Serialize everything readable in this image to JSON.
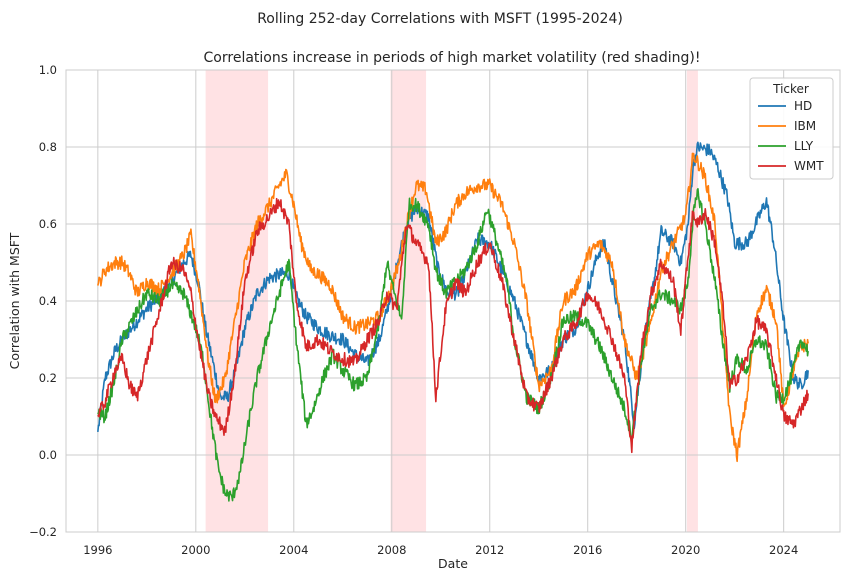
{
  "chart_data": {
    "type": "line",
    "suptitle": "Rolling 252-day Correlations with MSFT (1995-2024)",
    "title": "Correlations increase in periods of high market volatility (red shading)!",
    "xlabel": "Date",
    "ylabel": "Correlation with MSFT",
    "xlim": [
      1994.7,
      2026.3
    ],
    "ylim": [
      -0.2,
      1.0
    ],
    "xticks": [
      1996,
      2000,
      2004,
      2008,
      2012,
      2016,
      2020,
      2024
    ],
    "xtick_labels": [
      "1996",
      "2000",
      "2004",
      "2008",
      "2012",
      "2016",
      "2020",
      "2024"
    ],
    "yticks": [
      -0.2,
      0.0,
      0.2,
      0.4,
      0.6,
      0.8,
      1.0
    ],
    "ytick_labels": [
      "−0.2",
      "0.0",
      "0.2",
      "0.4",
      "0.6",
      "0.8",
      "1.0"
    ],
    "grid": true,
    "shaded_periods": [
      [
        2000.4,
        2002.95
      ],
      [
        2007.95,
        2009.4
      ],
      [
        2020.05,
        2020.5
      ]
    ],
    "shade_color": "#ffb3b8",
    "legend": {
      "title": "Ticker",
      "position": "top-right"
    },
    "series": [
      {
        "name": "HD",
        "color": "#1f77b4",
        "points": [
          [
            1996.0,
            0.06
          ],
          [
            1996.3,
            0.2
          ],
          [
            1996.7,
            0.27
          ],
          [
            1997.0,
            0.3
          ],
          [
            1997.5,
            0.34
          ],
          [
            1998.0,
            0.38
          ],
          [
            1998.5,
            0.41
          ],
          [
            1999.0,
            0.45
          ],
          [
            1999.5,
            0.5
          ],
          [
            1999.8,
            0.52
          ],
          [
            2000.1,
            0.45
          ],
          [
            2000.4,
            0.33
          ],
          [
            2000.7,
            0.24
          ],
          [
            2001.0,
            0.15
          ],
          [
            2001.3,
            0.15
          ],
          [
            2001.7,
            0.24
          ],
          [
            2002.0,
            0.33
          ],
          [
            2002.5,
            0.42
          ],
          [
            2003.0,
            0.46
          ],
          [
            2003.5,
            0.47
          ],
          [
            2003.8,
            0.47
          ],
          [
            2004.1,
            0.41
          ],
          [
            2004.5,
            0.36
          ],
          [
            2005.0,
            0.33
          ],
          [
            2005.5,
            0.31
          ],
          [
            2006.0,
            0.3
          ],
          [
            2006.5,
            0.26
          ],
          [
            2007.0,
            0.24
          ],
          [
            2007.5,
            0.3
          ],
          [
            2007.9,
            0.4
          ],
          [
            2008.3,
            0.52
          ],
          [
            2008.6,
            0.6
          ],
          [
            2009.0,
            0.64
          ],
          [
            2009.5,
            0.62
          ],
          [
            2009.9,
            0.48
          ],
          [
            2010.3,
            0.42
          ],
          [
            2010.7,
            0.42
          ],
          [
            2011.0,
            0.47
          ],
          [
            2011.5,
            0.56
          ],
          [
            2012.0,
            0.55
          ],
          [
            2012.5,
            0.48
          ],
          [
            2013.0,
            0.4
          ],
          [
            2013.5,
            0.3
          ],
          [
            2014.0,
            0.2
          ],
          [
            2014.5,
            0.22
          ],
          [
            2015.0,
            0.3
          ],
          [
            2015.5,
            0.33
          ],
          [
            2016.0,
            0.43
          ],
          [
            2016.4,
            0.52
          ],
          [
            2016.7,
            0.55
          ],
          [
            2017.0,
            0.45
          ],
          [
            2017.5,
            0.3
          ],
          [
            2017.9,
            0.08
          ],
          [
            2018.3,
            0.3
          ],
          [
            2018.7,
            0.45
          ],
          [
            2019.0,
            0.58
          ],
          [
            2019.5,
            0.55
          ],
          [
            2019.8,
            0.5
          ],
          [
            2020.1,
            0.6
          ],
          [
            2020.3,
            0.75
          ],
          [
            2020.5,
            0.8
          ],
          [
            2021.0,
            0.79
          ],
          [
            2021.3,
            0.75
          ],
          [
            2021.7,
            0.67
          ],
          [
            2022.0,
            0.55
          ],
          [
            2022.5,
            0.55
          ],
          [
            2023.0,
            0.62
          ],
          [
            2023.3,
            0.66
          ],
          [
            2023.6,
            0.55
          ],
          [
            2024.0,
            0.35
          ],
          [
            2024.4,
            0.2
          ],
          [
            2024.7,
            0.18
          ],
          [
            2025.0,
            0.22
          ]
        ]
      },
      {
        "name": "IBM",
        "color": "#ff7f0e",
        "points": [
          [
            1996.0,
            0.44
          ],
          [
            1996.3,
            0.48
          ],
          [
            1996.7,
            0.5
          ],
          [
            1997.0,
            0.5
          ],
          [
            1997.3,
            0.47
          ],
          [
            1997.6,
            0.42
          ],
          [
            1998.0,
            0.45
          ],
          [
            1998.5,
            0.43
          ],
          [
            1999.0,
            0.47
          ],
          [
            1999.5,
            0.52
          ],
          [
            1999.8,
            0.57
          ],
          [
            2000.1,
            0.45
          ],
          [
            2000.5,
            0.25
          ],
          [
            2000.8,
            0.14
          ],
          [
            2001.2,
            0.2
          ],
          [
            2001.6,
            0.35
          ],
          [
            2002.0,
            0.5
          ],
          [
            2002.5,
            0.6
          ],
          [
            2003.0,
            0.65
          ],
          [
            2003.4,
            0.7
          ],
          [
            2003.7,
            0.73
          ],
          [
            2004.0,
            0.65
          ],
          [
            2004.3,
            0.55
          ],
          [
            2004.7,
            0.48
          ],
          [
            2005.0,
            0.47
          ],
          [
            2005.5,
            0.44
          ],
          [
            2006.0,
            0.36
          ],
          [
            2006.5,
            0.33
          ],
          [
            2007.0,
            0.34
          ],
          [
            2007.5,
            0.36
          ],
          [
            2007.9,
            0.42
          ],
          [
            2008.3,
            0.5
          ],
          [
            2008.6,
            0.6
          ],
          [
            2009.0,
            0.7
          ],
          [
            2009.4,
            0.69
          ],
          [
            2009.8,
            0.55
          ],
          [
            2010.2,
            0.58
          ],
          [
            2010.6,
            0.65
          ],
          [
            2011.0,
            0.68
          ],
          [
            2011.5,
            0.7
          ],
          [
            2012.0,
            0.7
          ],
          [
            2012.5,
            0.65
          ],
          [
            2013.0,
            0.55
          ],
          [
            2013.5,
            0.4
          ],
          [
            2014.0,
            0.18
          ],
          [
            2014.5,
            0.22
          ],
          [
            2015.0,
            0.4
          ],
          [
            2015.5,
            0.43
          ],
          [
            2016.0,
            0.52
          ],
          [
            2016.5,
            0.55
          ],
          [
            2017.0,
            0.5
          ],
          [
            2017.5,
            0.3
          ],
          [
            2018.0,
            0.2
          ],
          [
            2018.5,
            0.32
          ],
          [
            2019.0,
            0.48
          ],
          [
            2019.5,
            0.55
          ],
          [
            2020.0,
            0.62
          ],
          [
            2020.3,
            0.78
          ],
          [
            2020.5,
            0.76
          ],
          [
            2020.8,
            0.72
          ],
          [
            2021.2,
            0.6
          ],
          [
            2021.5,
            0.35
          ],
          [
            2021.8,
            0.1
          ],
          [
            2022.1,
            0.0
          ],
          [
            2022.5,
            0.15
          ],
          [
            2022.9,
            0.37
          ],
          [
            2023.3,
            0.43
          ],
          [
            2023.7,
            0.35
          ],
          [
            2024.0,
            0.12
          ],
          [
            2024.4,
            0.22
          ],
          [
            2024.7,
            0.28
          ],
          [
            2025.0,
            0.29
          ]
        ]
      },
      {
        "name": "LLY",
        "color": "#2ca02c",
        "points": [
          [
            1996.0,
            0.11
          ],
          [
            1996.3,
            0.1
          ],
          [
            1996.7,
            0.2
          ],
          [
            1997.0,
            0.3
          ],
          [
            1997.5,
            0.36
          ],
          [
            1998.0,
            0.42
          ],
          [
            1998.5,
            0.4
          ],
          [
            1999.0,
            0.44
          ],
          [
            1999.5,
            0.42
          ],
          [
            2000.0,
            0.33
          ],
          [
            2000.3,
            0.25
          ],
          [
            2000.6,
            0.1
          ],
          [
            2000.9,
            -0.03
          ],
          [
            2001.2,
            -0.1
          ],
          [
            2001.5,
            -0.11
          ],
          [
            2001.8,
            -0.05
          ],
          [
            2002.2,
            0.1
          ],
          [
            2002.5,
            0.2
          ],
          [
            2003.0,
            0.33
          ],
          [
            2003.5,
            0.44
          ],
          [
            2003.8,
            0.5
          ],
          [
            2004.1,
            0.3
          ],
          [
            2004.5,
            0.08
          ],
          [
            2004.8,
            0.12
          ],
          [
            2005.2,
            0.2
          ],
          [
            2005.6,
            0.26
          ],
          [
            2006.0,
            0.22
          ],
          [
            2006.5,
            0.18
          ],
          [
            2007.0,
            0.2
          ],
          [
            2007.5,
            0.35
          ],
          [
            2007.8,
            0.5
          ],
          [
            2008.1,
            0.42
          ],
          [
            2008.4,
            0.35
          ],
          [
            2008.7,
            0.65
          ],
          [
            2009.0,
            0.65
          ],
          [
            2009.5,
            0.6
          ],
          [
            2009.8,
            0.48
          ],
          [
            2010.2,
            0.42
          ],
          [
            2010.6,
            0.45
          ],
          [
            2011.0,
            0.48
          ],
          [
            2011.5,
            0.55
          ],
          [
            2011.9,
            0.64
          ],
          [
            2012.3,
            0.55
          ],
          [
            2012.7,
            0.45
          ],
          [
            2013.0,
            0.3
          ],
          [
            2013.5,
            0.15
          ],
          [
            2014.0,
            0.12
          ],
          [
            2014.5,
            0.2
          ],
          [
            2015.0,
            0.35
          ],
          [
            2015.5,
            0.36
          ],
          [
            2016.0,
            0.34
          ],
          [
            2016.5,
            0.28
          ],
          [
            2017.0,
            0.2
          ],
          [
            2017.5,
            0.12
          ],
          [
            2017.8,
            0.05
          ],
          [
            2018.2,
            0.25
          ],
          [
            2018.6,
            0.38
          ],
          [
            2019.0,
            0.42
          ],
          [
            2019.5,
            0.4
          ],
          [
            2019.8,
            0.38
          ],
          [
            2020.1,
            0.45
          ],
          [
            2020.3,
            0.62
          ],
          [
            2020.5,
            0.68
          ],
          [
            2020.8,
            0.6
          ],
          [
            2021.2,
            0.45
          ],
          [
            2021.5,
            0.3
          ],
          [
            2021.8,
            0.18
          ],
          [
            2022.1,
            0.25
          ],
          [
            2022.5,
            0.22
          ],
          [
            2022.9,
            0.3
          ],
          [
            2023.3,
            0.28
          ],
          [
            2023.7,
            0.15
          ],
          [
            2024.0,
            0.15
          ],
          [
            2024.3,
            0.2
          ],
          [
            2024.7,
            0.3
          ],
          [
            2025.0,
            0.27
          ]
        ]
      },
      {
        "name": "WMT",
        "color": "#d62728",
        "points": [
          [
            1996.0,
            0.1
          ],
          [
            1996.3,
            0.14
          ],
          [
            1996.7,
            0.22
          ],
          [
            1997.0,
            0.25
          ],
          [
            1997.3,
            0.18
          ],
          [
            1997.6,
            0.15
          ],
          [
            1998.0,
            0.25
          ],
          [
            1998.5,
            0.37
          ],
          [
            1999.0,
            0.5
          ],
          [
            1999.5,
            0.48
          ],
          [
            1999.8,
            0.42
          ],
          [
            2000.1,
            0.3
          ],
          [
            2000.5,
            0.16
          ],
          [
            2000.8,
            0.1
          ],
          [
            2001.2,
            0.06
          ],
          [
            2001.6,
            0.22
          ],
          [
            2002.0,
            0.45
          ],
          [
            2002.5,
            0.58
          ],
          [
            2003.0,
            0.62
          ],
          [
            2003.4,
            0.66
          ],
          [
            2003.8,
            0.6
          ],
          [
            2004.1,
            0.4
          ],
          [
            2004.5,
            0.28
          ],
          [
            2005.0,
            0.3
          ],
          [
            2005.5,
            0.27
          ],
          [
            2006.0,
            0.25
          ],
          [
            2006.5,
            0.24
          ],
          [
            2007.0,
            0.3
          ],
          [
            2007.5,
            0.35
          ],
          [
            2007.8,
            0.42
          ],
          [
            2008.2,
            0.38
          ],
          [
            2008.6,
            0.6
          ],
          [
            2009.0,
            0.55
          ],
          [
            2009.5,
            0.5
          ],
          [
            2009.8,
            0.15
          ],
          [
            2010.2,
            0.38
          ],
          [
            2010.6,
            0.45
          ],
          [
            2011.0,
            0.42
          ],
          [
            2011.5,
            0.5
          ],
          [
            2012.0,
            0.55
          ],
          [
            2012.5,
            0.45
          ],
          [
            2013.0,
            0.3
          ],
          [
            2013.5,
            0.15
          ],
          [
            2014.0,
            0.12
          ],
          [
            2014.5,
            0.2
          ],
          [
            2015.0,
            0.3
          ],
          [
            2015.5,
            0.34
          ],
          [
            2016.0,
            0.42
          ],
          [
            2016.5,
            0.38
          ],
          [
            2017.0,
            0.3
          ],
          [
            2017.5,
            0.2
          ],
          [
            2017.8,
            0.02
          ],
          [
            2018.2,
            0.28
          ],
          [
            2018.6,
            0.42
          ],
          [
            2019.0,
            0.5
          ],
          [
            2019.5,
            0.45
          ],
          [
            2019.8,
            0.32
          ],
          [
            2020.1,
            0.52
          ],
          [
            2020.3,
            0.63
          ],
          [
            2020.5,
            0.6
          ],
          [
            2020.8,
            0.63
          ],
          [
            2021.2,
            0.55
          ],
          [
            2021.5,
            0.4
          ],
          [
            2021.8,
            0.18
          ],
          [
            2022.1,
            0.2
          ],
          [
            2022.5,
            0.25
          ],
          [
            2022.9,
            0.35
          ],
          [
            2023.3,
            0.32
          ],
          [
            2023.7,
            0.2
          ],
          [
            2024.0,
            0.1
          ],
          [
            2024.4,
            0.08
          ],
          [
            2024.7,
            0.12
          ],
          [
            2025.0,
            0.16
          ]
        ]
      }
    ]
  }
}
